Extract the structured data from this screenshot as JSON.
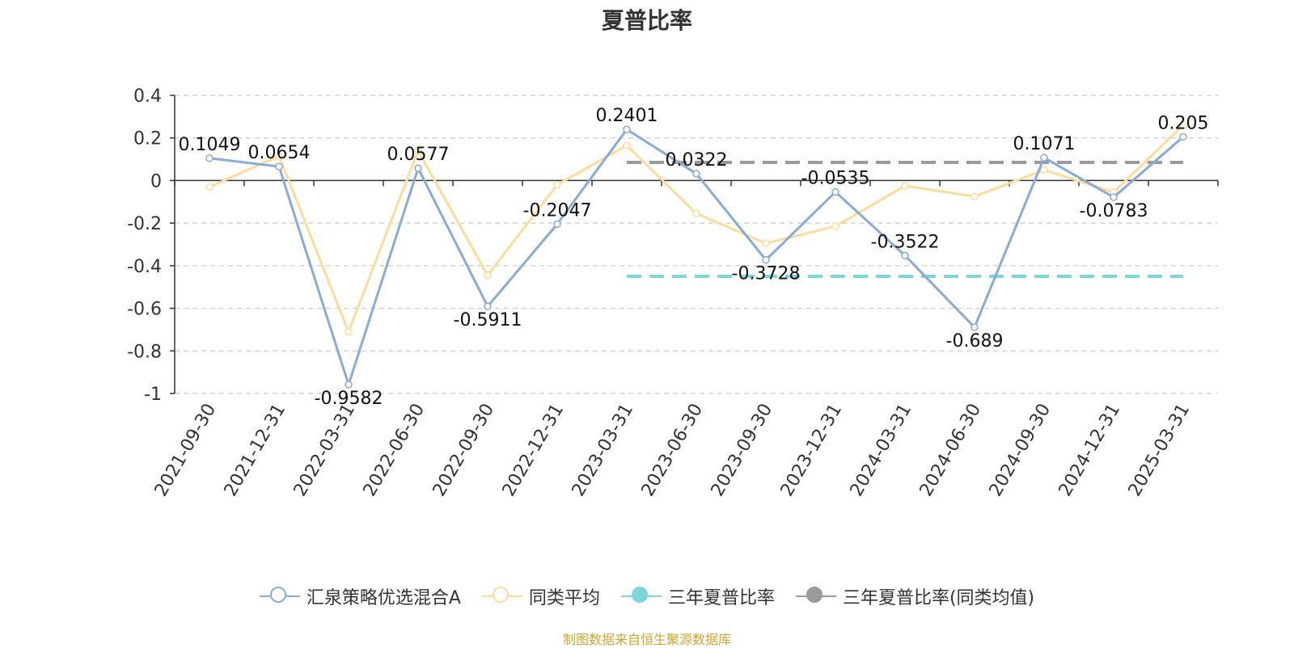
{
  "chart_data": {
    "type": "line",
    "title": "夏普比率",
    "categories": [
      "2021-09-30",
      "2021-12-31",
      "2022-03-31",
      "2022-06-30",
      "2022-09-30",
      "2022-12-31",
      "2023-03-31",
      "2023-06-30",
      "2023-09-30",
      "2023-12-31",
      "2024-03-31",
      "2024-06-30",
      "2024-09-30",
      "2024-12-31",
      "2025-03-31"
    ],
    "ylim": [
      -1,
      0.4
    ],
    "yticks": [
      0.4,
      0.2,
      0,
      -0.2,
      -0.4,
      -0.6,
      -0.8,
      -1
    ],
    "grid": true,
    "legend_position": "bottom",
    "series": [
      {
        "name": "汇泉策略优选混合A",
        "color": "#8aaad8",
        "values": [
          0.1049,
          0.0654,
          -0.9582,
          0.0577,
          -0.5911,
          -0.2047,
          0.2401,
          0.0322,
          -0.3728,
          -0.0535,
          -0.3522,
          -0.689,
          0.1071,
          -0.0783,
          0.205
        ],
        "labels": [
          "0.1049",
          "0.0654",
          "-0.9582",
          "0.0577",
          "-0.5911",
          "-0.2047",
          "0.2401",
          "0.0322",
          "-0.3728",
          "-0.0535",
          "-0.3522",
          "-0.689",
          "0.1071",
          "-0.0783",
          "0.205"
        ]
      },
      {
        "name": "同类平均",
        "color": "#fcdc9b",
        "values": [
          -0.03,
          0.115,
          -0.71,
          0.14,
          -0.445,
          -0.02,
          0.165,
          -0.155,
          -0.295,
          -0.215,
          -0.025,
          -0.075,
          0.05,
          -0.055,
          0.26
        ]
      }
    ],
    "reference_lines": [
      {
        "name": "三年夏普比率",
        "color": "#7fd6d8",
        "value": -0.45,
        "from": "2023-03-31",
        "to": "2025-03-31"
      },
      {
        "name": "三年夏普比率(同类均值)",
        "color": "#9a9a9a",
        "value": 0.085,
        "from": "2023-03-31",
        "to": "2025-03-31"
      }
    ]
  },
  "legend": {
    "items": [
      {
        "label": "汇泉策略优选混合A",
        "color": "#8aaad8",
        "style": "hollow"
      },
      {
        "label": "同类平均",
        "color": "#fcdc9b",
        "style": "hollow"
      },
      {
        "label": "三年夏普比率",
        "color": "#7fd6d8",
        "style": "filled"
      },
      {
        "label": "三年夏普比率(同类均值)",
        "color": "#9a9a9a",
        "style": "filled"
      }
    ]
  },
  "footer": {
    "source": "制图数据来自恒生聚源数据库"
  }
}
